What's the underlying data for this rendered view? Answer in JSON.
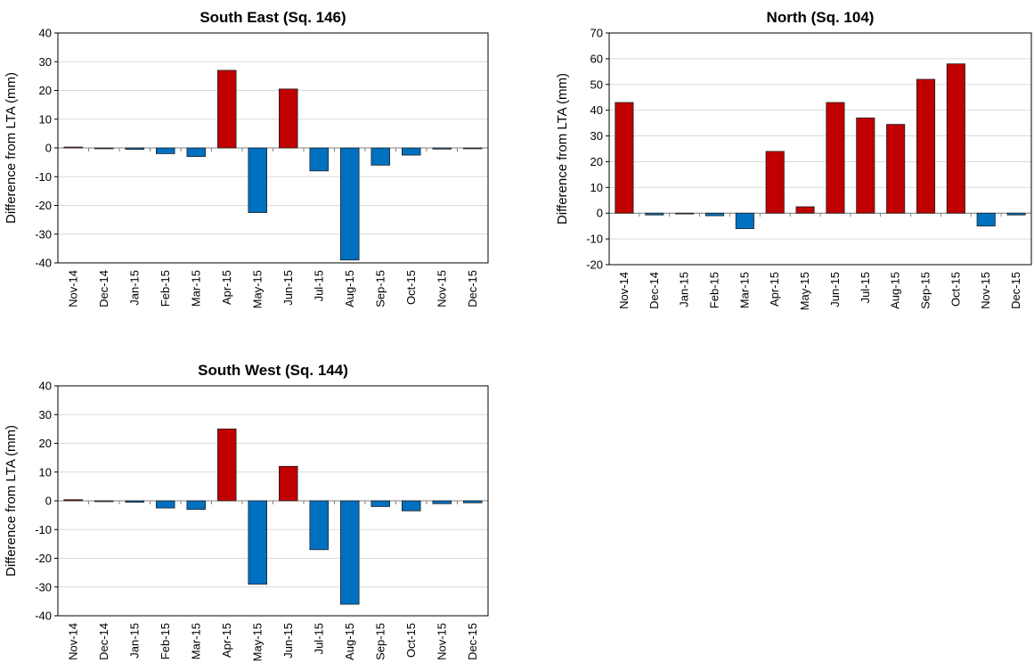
{
  "chart_data": [
    {
      "type": "bar",
      "title": "South East (Sq. 146)",
      "y_label": "Difference from LTA (mm)",
      "categories": [
        "Nov-14",
        "Dec-14",
        "Jan-15",
        "Feb-15",
        "Mar-15",
        "Apr-15",
        "May-15",
        "Jun-15",
        "Jul-15",
        "Aug-15",
        "Sep-15",
        "Oct-15",
        "Nov-15",
        "Dec-15"
      ],
      "values": [
        0.3,
        -0.3,
        -0.5,
        -2,
        -3,
        27,
        -22.5,
        20.5,
        -8,
        -39,
        -6,
        -2.5,
        -0.4,
        -0.3
      ],
      "ylim": [
        -40,
        40
      ],
      "yticks": [
        -40,
        -30,
        -20,
        -10,
        0,
        10,
        20,
        30,
        40
      ],
      "grid": true,
      "positive_color": "#c00000",
      "negative_color": "#0070c0"
    },
    {
      "type": "bar",
      "title": "North (Sq. 104)",
      "y_label": "Difference from LTA (mm)",
      "categories": [
        "Nov-14",
        "Dec-14",
        "Jan-15",
        "Feb-15",
        "Mar-15",
        "Apr-15",
        "May-15",
        "Jun-15",
        "Jul-15",
        "Aug-15",
        "Sep-15",
        "Oct-15",
        "Nov-15",
        "Dec-15"
      ],
      "values": [
        43,
        -0.7,
        -0.3,
        -1,
        -6,
        24,
        2.5,
        43,
        37,
        34.5,
        52,
        58,
        -5,
        -0.7
      ],
      "ylim": [
        -20,
        70
      ],
      "yticks": [
        -20,
        -10,
        0,
        10,
        20,
        30,
        40,
        50,
        60,
        70
      ],
      "grid": true,
      "positive_color": "#c00000",
      "negative_color": "#0070c0"
    },
    {
      "type": "bar",
      "title": "South West (Sq. 144)",
      "y_label": "Difference from LTA (mm)",
      "categories": [
        "Nov-14",
        "Dec-14",
        "Jan-15",
        "Feb-15",
        "Mar-15",
        "Apr-15",
        "May-15",
        "Jun-15",
        "Jul-15",
        "Aug-15",
        "Sep-15",
        "Oct-15",
        "Nov-15",
        "Dec-15"
      ],
      "values": [
        0.4,
        -0.3,
        -0.5,
        -2.5,
        -3,
        25,
        -29,
        12,
        -17,
        -36,
        -2,
        -3.5,
        -1,
        -0.7
      ],
      "ylim": [
        -40,
        40
      ],
      "yticks": [
        -40,
        -30,
        -20,
        -10,
        0,
        10,
        20,
        30,
        40
      ],
      "grid": true,
      "positive_color": "#c00000",
      "negative_color": "#0070c0"
    }
  ]
}
